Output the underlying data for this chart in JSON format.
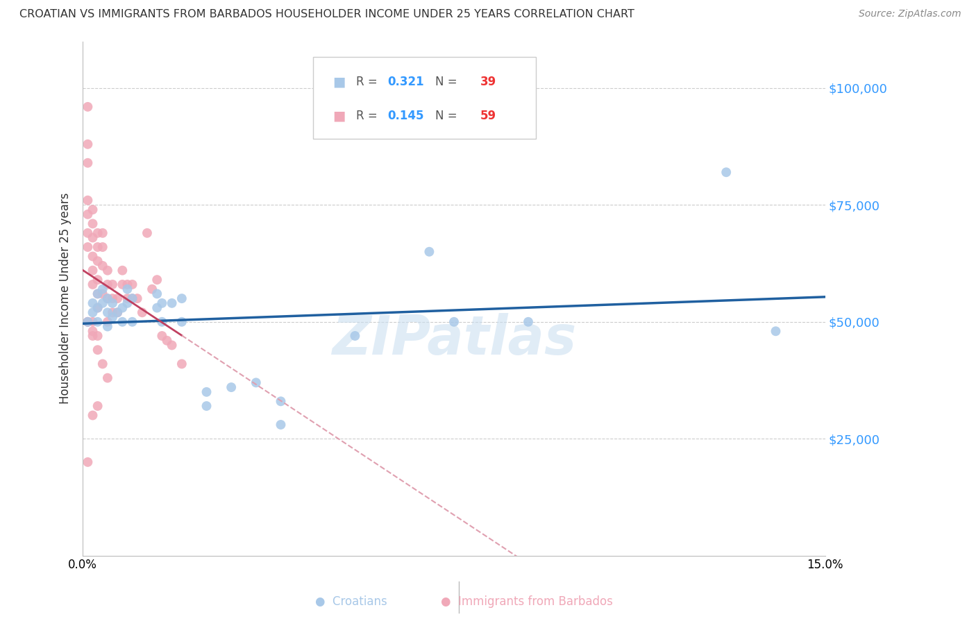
{
  "title": "CROATIAN VS IMMIGRANTS FROM BARBADOS HOUSEHOLDER INCOME UNDER 25 YEARS CORRELATION CHART",
  "source": "Source: ZipAtlas.com",
  "ylabel": "Householder Income Under 25 years",
  "xlim": [
    0.0,
    0.15
  ],
  "ylim": [
    0,
    110000
  ],
  "yticks": [
    25000,
    50000,
    75000,
    100000
  ],
  "ytick_labels": [
    "$25,000",
    "$50,000",
    "$75,000",
    "$100,000"
  ],
  "xticks": [
    0.0,
    0.03,
    0.06,
    0.09,
    0.12,
    0.15
  ],
  "xtick_labels": [
    "0.0%",
    "",
    "",
    "",
    "",
    "15.0%"
  ],
  "legend1_R": "0.321",
  "legend1_N": "39",
  "legend2_R": "0.145",
  "legend2_N": "59",
  "blue_color": "#a8c8e8",
  "pink_color": "#f0a8b8",
  "blue_line_color": "#2060a0",
  "pink_line_color": "#c04060",
  "pink_dashed_color": "#e0a0b0",
  "watermark": "ZIPatlas",
  "blue_scatter_x": [
    0.001,
    0.002,
    0.002,
    0.003,
    0.003,
    0.003,
    0.004,
    0.004,
    0.005,
    0.005,
    0.005,
    0.006,
    0.006,
    0.007,
    0.008,
    0.008,
    0.009,
    0.009,
    0.01,
    0.01,
    0.015,
    0.015,
    0.016,
    0.016,
    0.018,
    0.02,
    0.02,
    0.025,
    0.025,
    0.03,
    0.035,
    0.04,
    0.04,
    0.055,
    0.07,
    0.075,
    0.09,
    0.13,
    0.14
  ],
  "blue_scatter_y": [
    50000,
    54000,
    52000,
    56000,
    53000,
    50000,
    57000,
    54000,
    55000,
    52000,
    49000,
    54000,
    51000,
    52000,
    53000,
    50000,
    57000,
    54000,
    55000,
    50000,
    56000,
    53000,
    54000,
    50000,
    54000,
    55000,
    50000,
    35000,
    32000,
    36000,
    37000,
    33000,
    28000,
    47000,
    65000,
    50000,
    50000,
    82000,
    48000
  ],
  "pink_scatter_x": [
    0.001,
    0.001,
    0.001,
    0.001,
    0.001,
    0.001,
    0.001,
    0.001,
    0.002,
    0.002,
    0.002,
    0.002,
    0.002,
    0.002,
    0.002,
    0.003,
    0.003,
    0.003,
    0.003,
    0.003,
    0.003,
    0.004,
    0.004,
    0.004,
    0.004,
    0.005,
    0.005,
    0.005,
    0.005,
    0.006,
    0.006,
    0.006,
    0.007,
    0.007,
    0.008,
    0.008,
    0.009,
    0.009,
    0.01,
    0.01,
    0.011,
    0.012,
    0.013,
    0.014,
    0.015,
    0.016,
    0.017,
    0.018,
    0.02,
    0.001,
    0.002,
    0.003,
    0.004,
    0.005,
    0.001,
    0.002,
    0.003,
    0.003,
    0.002
  ],
  "pink_scatter_y": [
    96000,
    88000,
    84000,
    76000,
    73000,
    69000,
    66000,
    50000,
    74000,
    71000,
    68000,
    64000,
    61000,
    58000,
    50000,
    69000,
    66000,
    63000,
    59000,
    56000,
    53000,
    69000,
    66000,
    62000,
    56000,
    61000,
    58000,
    55000,
    50000,
    58000,
    55000,
    52000,
    55000,
    52000,
    61000,
    58000,
    58000,
    55000,
    58000,
    55000,
    55000,
    52000,
    69000,
    57000,
    59000,
    47000,
    46000,
    45000,
    41000,
    50000,
    47000,
    44000,
    41000,
    38000,
    20000,
    30000,
    32000,
    47000,
    48000
  ]
}
